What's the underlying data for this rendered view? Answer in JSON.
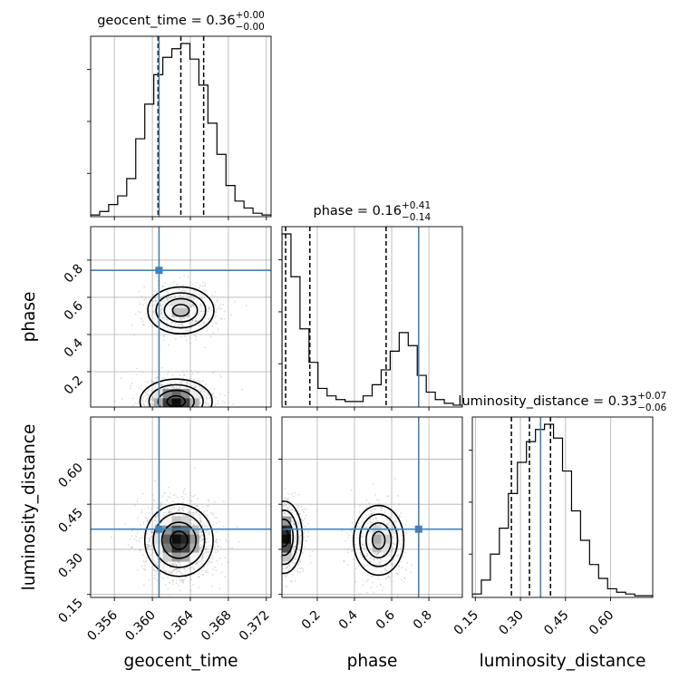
{
  "chart_data": {
    "type": "corner",
    "truth_color": "#4682b4",
    "parameters": [
      {
        "name": "geocent_time",
        "xlabel": "geocent_time",
        "ylabel": "",
        "title_base": "geocent_time = 0.36",
        "title_sup": "+0.00",
        "title_sub": "−0.00",
        "range": [
          0.3535,
          0.3725
        ],
        "ticks": [
          0.356,
          0.36,
          0.364,
          0.368,
          0.372
        ],
        "tick_labels": [
          "0.356",
          "0.360",
          "0.364",
          "0.368",
          "0.372"
        ],
        "truth": 0.3607,
        "quantiles": [
          0.3606,
          0.363,
          0.3654
        ]
      },
      {
        "name": "phase",
        "xlabel": "phase",
        "ylabel": "phase",
        "title_base": "phase = 0.16",
        "title_sup": "+0.41",
        "title_sub": "−0.14",
        "range": [
          0.01,
          0.98
        ],
        "ticks": [
          0.2,
          0.4,
          0.6,
          0.8
        ],
        "tick_labels": [
          "0.2",
          "0.4",
          "0.6",
          "0.8"
        ],
        "truth": 0.745,
        "quantiles": [
          0.03,
          0.16,
          0.57
        ]
      },
      {
        "name": "luminosity_distance",
        "xlabel": "luminosity_distance",
        "ylabel": "luminosity_distance",
        "title_base": "luminosity_distance = 0.33",
        "title_sup": "+0.07",
        "title_sub": "−0.06",
        "range": [
          0.14,
          0.74
        ],
        "ticks": [
          0.15,
          0.3,
          0.45,
          0.6
        ],
        "tick_labels": [
          "0.15",
          "0.30",
          "0.45",
          "0.60"
        ],
        "truth": 0.367,
        "quantiles": [
          0.27,
          0.33,
          0.4
        ]
      }
    ],
    "histograms": [
      {
        "param": "geocent_time",
        "values": [
          0.01,
          0.03,
          0.07,
          0.12,
          0.22,
          0.45,
          0.65,
          0.82,
          0.92,
          0.97,
          1.0,
          0.91,
          0.76,
          0.54,
          0.36,
          0.18,
          0.09,
          0.05,
          0.02,
          0.01
        ]
      },
      {
        "param": "phase",
        "values": [
          0.93,
          0.7,
          0.42,
          0.24,
          0.1,
          0.06,
          0.04,
          0.03,
          0.03,
          0.06,
          0.12,
          0.2,
          0.3,
          0.4,
          0.33,
          0.17,
          0.08,
          0.04,
          0.02,
          0.01
        ]
      },
      {
        "param": "luminosity_distance",
        "values": [
          0.02,
          0.1,
          0.25,
          0.4,
          0.6,
          0.78,
          0.9,
          0.97,
          1.0,
          0.92,
          0.73,
          0.5,
          0.33,
          0.19,
          0.11,
          0.05,
          0.03,
          0.02,
          0.01,
          0.01
        ]
      }
    ],
    "contour_panels": [
      {
        "x": "geocent_time",
        "y": "phase",
        "modes": [
          {
            "cx": 0.363,
            "cy": 0.53,
            "sx": 0.0018,
            "sy": 0.065,
            "w": 0.6
          },
          {
            "cx": 0.3625,
            "cy": 0.04,
            "sx": 0.0019,
            "sy": 0.06,
            "w": 1.0
          }
        ]
      },
      {
        "x": "geocent_time",
        "y": "luminosity_distance",
        "modes": [
          {
            "cx": 0.3628,
            "cy": 0.33,
            "sx": 0.0018,
            "sy": 0.06,
            "w": 1.0
          }
        ]
      },
      {
        "x": "phase",
        "y": "luminosity_distance",
        "modes": [
          {
            "cx": 0.02,
            "cy": 0.34,
            "sx": 0.05,
            "sy": 0.06,
            "w": 1.0
          },
          {
            "cx": 0.53,
            "cy": 0.33,
            "sx": 0.07,
            "sy": 0.06,
            "w": 0.6
          }
        ]
      }
    ],
    "contour_levels": [
      "0.5 sigma",
      "1 sigma",
      "1.5 sigma",
      "2 sigma"
    ],
    "grid": true
  }
}
